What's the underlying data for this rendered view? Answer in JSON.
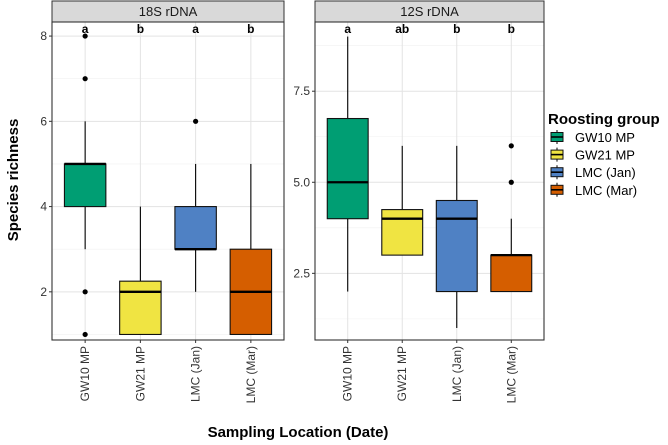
{
  "chart_data": {
    "type": "boxplot",
    "ylabel": "Species richness",
    "xlabel": "Sampling Location (Date)",
    "legend": {
      "title": "Roosting group",
      "placement": "right"
    },
    "categories": [
      "GW10 MP",
      "GW21 MP",
      "LMC (Jan)",
      "LMC (Mar)"
    ],
    "colors": [
      "#009E73",
      "#F0E442",
      "#4F81C4",
      "#D55E00"
    ],
    "panels": [
      {
        "title": "18S rDNA",
        "ylim": [
          0.87,
          8.33
        ],
        "yticks": [
          2,
          4,
          6,
          8
        ],
        "ytick_labels": [
          "2",
          "4",
          "6",
          "8"
        ],
        "minor_yticks": [
          1,
          3,
          5,
          7
        ],
        "boxes": [
          {
            "letter": "a",
            "lower_whisker": 3,
            "q1": 4,
            "median": 5,
            "q3": 5,
            "upper_whisker": 6,
            "outliers": [
              8,
              7,
              2,
              1
            ]
          },
          {
            "letter": "b",
            "lower_whisker": 1,
            "q1": 1,
            "median": 2,
            "q3": 2.25,
            "upper_whisker": 4,
            "outliers": []
          },
          {
            "letter": "a",
            "lower_whisker": 2,
            "q1": 3,
            "median": 3,
            "q3": 4,
            "upper_whisker": 5,
            "outliers": [
              6
            ]
          },
          {
            "letter": "b",
            "lower_whisker": 1,
            "q1": 1,
            "median": 2,
            "q3": 3,
            "upper_whisker": 5,
            "outliers": []
          }
        ]
      },
      {
        "title": "12S rDNA",
        "ylim": [
          0.67,
          9.4
        ],
        "yticks": [
          2.5,
          5.0,
          7.5
        ],
        "ytick_labels": [
          "2.5",
          "5.0",
          "7.5"
        ],
        "minor_yticks": [
          1.25,
          3.75,
          6.25,
          8.75
        ],
        "boxes": [
          {
            "letter": "a",
            "lower_whisker": 2,
            "q1": 4,
            "median": 5,
            "q3": 6.75,
            "upper_whisker": 9,
            "outliers": []
          },
          {
            "letter": "ab",
            "lower_whisker": 3,
            "q1": 3,
            "median": 4,
            "q3": 4.25,
            "upper_whisker": 6,
            "outliers": []
          },
          {
            "letter": "b",
            "lower_whisker": 1,
            "q1": 2,
            "median": 4,
            "q3": 4.5,
            "upper_whisker": 6,
            "outliers": []
          },
          {
            "letter": "b",
            "lower_whisker": 2,
            "q1": 2,
            "median": 3,
            "q3": 3,
            "upper_whisker": 4,
            "outliers": [
              5,
              6
            ]
          }
        ]
      }
    ]
  }
}
